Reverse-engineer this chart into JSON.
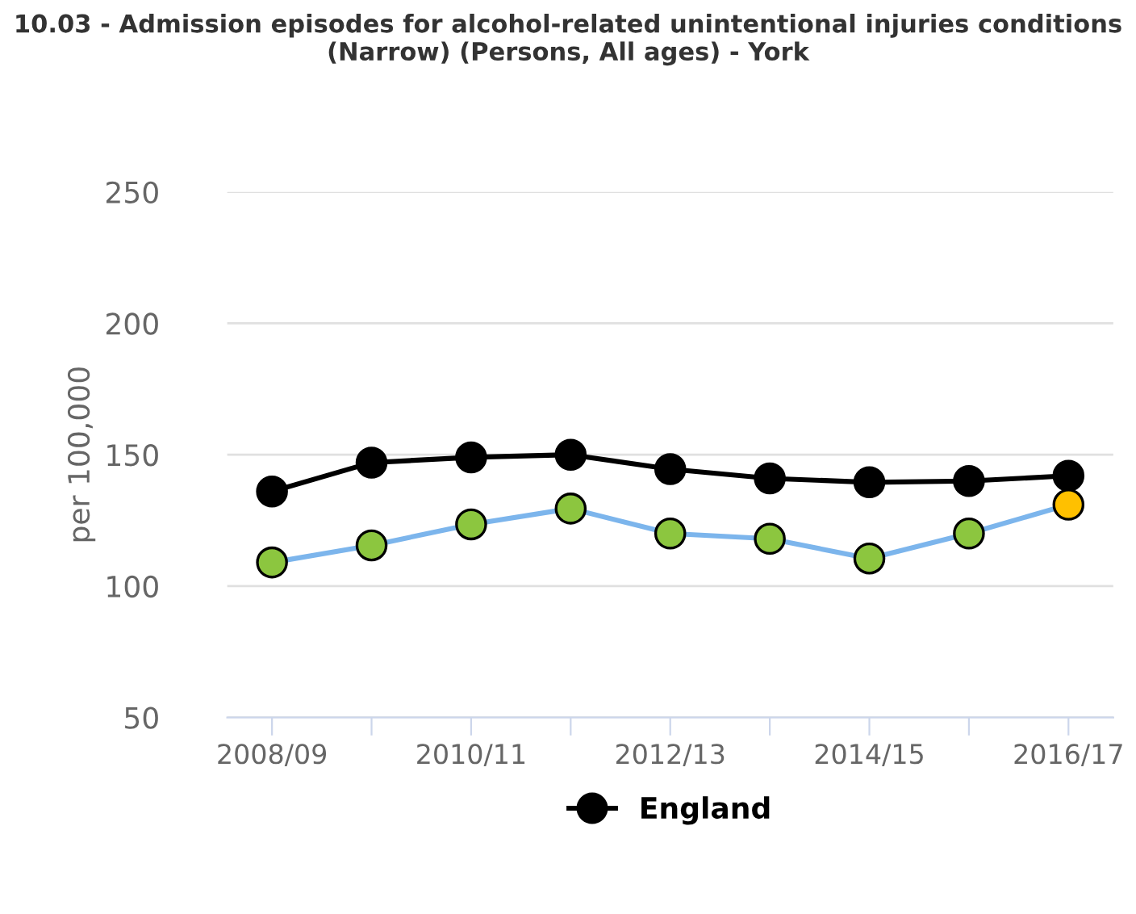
{
  "chart_data": {
    "type": "line",
    "title": "10.03 - Admission episodes for alcohol-related unintentional injuries conditions (Narrow) (Persons, All ages) - York",
    "ylabel": "per 100,000",
    "categories": [
      "2008/09",
      null,
      "2010/11",
      null,
      "2012/13",
      null,
      "2014/15",
      null,
      "2016/17"
    ],
    "series": [
      {
        "name": "England",
        "color": "#000000",
        "values": [
          136,
          147,
          149,
          150,
          144.5,
          141,
          139.5,
          140,
          142
        ]
      },
      {
        "color": "#7cb5ec",
        "colors": [
          "#8cc63f",
          "#8cc63f",
          "#8cc63f",
          "#8cc63f",
          "#8cc63f",
          "#8cc63f",
          "#8cc63f",
          "#8cc63f",
          "#ffc000"
        ],
        "values": [
          109,
          115.5,
          123.5,
          129.5,
          120,
          118,
          110.5,
          120,
          131
        ]
      }
    ],
    "ylim": [
      50,
      250
    ],
    "yticks": [
      50,
      100,
      150,
      200,
      250
    ],
    "grid": "y",
    "legend": "bottom",
    "marker": "circle",
    "line_style": "solid"
  }
}
